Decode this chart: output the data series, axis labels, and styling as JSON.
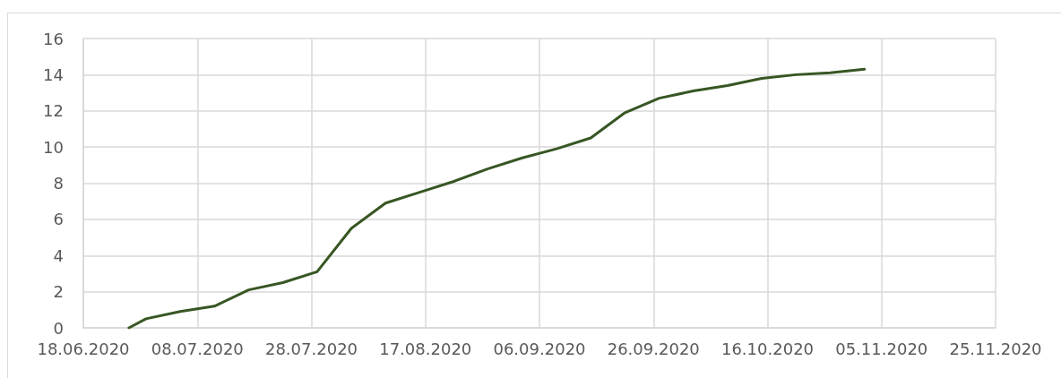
{
  "chart_data": {
    "type": "line",
    "x": [
      "2020-06-26",
      "2020-06-29",
      "2020-07-05",
      "2020-07-11",
      "2020-07-17",
      "2020-07-23",
      "2020-07-29",
      "2020-08-04",
      "2020-08-10",
      "2020-08-16",
      "2020-08-22",
      "2020-08-28",
      "2020-09-03",
      "2020-09-09",
      "2020-09-15",
      "2020-09-21",
      "2020-09-27",
      "2020-10-03",
      "2020-10-09",
      "2020-10-15",
      "2020-10-21",
      "2020-10-27",
      "2020-11-02"
    ],
    "series": [
      {
        "color": "#375623",
        "values": [
          0,
          0.5,
          0.9,
          1.2,
          2.1,
          2.5,
          3.1,
          5.5,
          6.9,
          7.5,
          8.1,
          8.8,
          9.4,
          9.9,
          10.5,
          11.9,
          12.7,
          13.1,
          13.4,
          13.8,
          14.0,
          14.1,
          14.3
        ]
      }
    ],
    "xlim": [
      "2020-06-18",
      "2020-11-25"
    ],
    "xticks": [
      {
        "value": "2020-06-18",
        "label": "18.06.2020"
      },
      {
        "value": "2020-07-08",
        "label": "08.07.2020"
      },
      {
        "value": "2020-07-28",
        "label": "28.07.2020"
      },
      {
        "value": "2020-08-17",
        "label": "17.08.2020"
      },
      {
        "value": "2020-09-06",
        "label": "06.09.2020"
      },
      {
        "value": "2020-09-26",
        "label": "26.09.2020"
      },
      {
        "value": "2020-10-16",
        "label": "16.10.2020"
      },
      {
        "value": "2020-11-05",
        "label": "05.11.2020"
      },
      {
        "value": "2020-11-25",
        "label": "25.11.2020"
      }
    ],
    "ylim": [
      0,
      16
    ],
    "yticks": [
      0,
      2,
      4,
      6,
      8,
      10,
      12,
      14,
      16
    ],
    "grid": true,
    "marker": "none",
    "line_style": "solid"
  }
}
